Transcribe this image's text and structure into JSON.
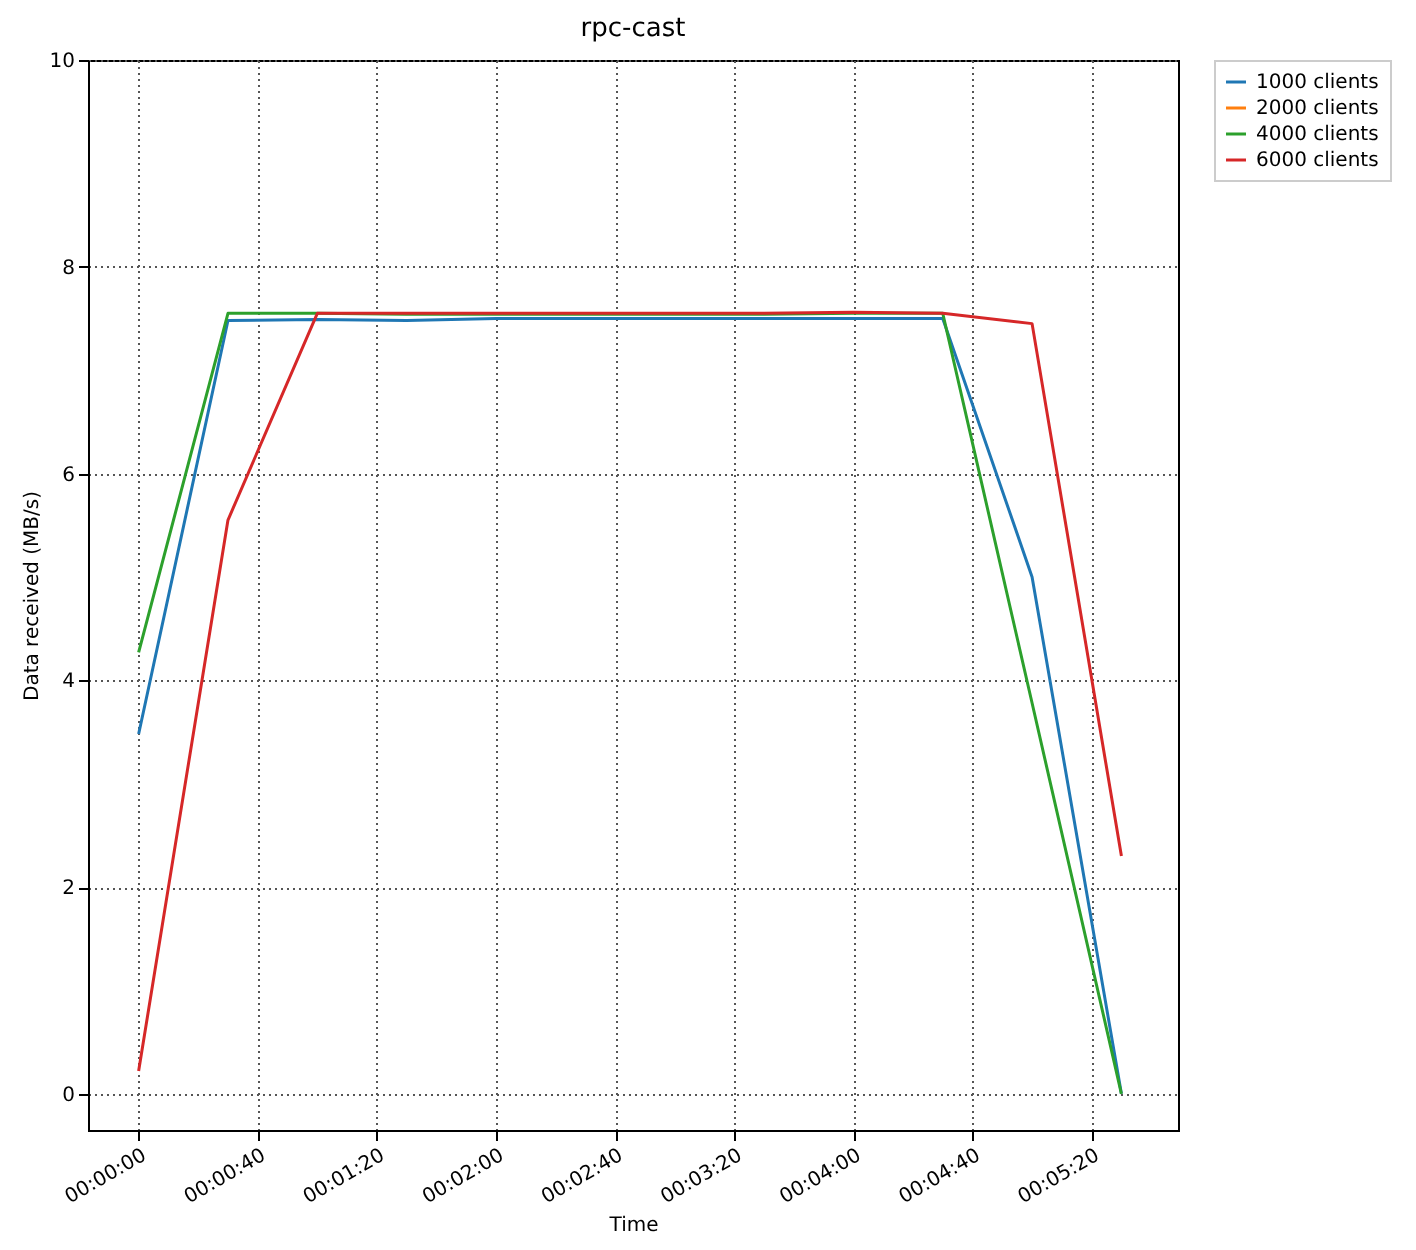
{
  "chart_data": {
    "type": "line",
    "title": "rpc-cast",
    "xlabel": "Time",
    "ylabel": "Data received (MB/s)",
    "x": [
      0,
      30,
      60,
      90,
      120,
      150,
      180,
      210,
      240,
      270,
      300,
      330
    ],
    "series": [
      {
        "name": "1000 clients",
        "color": "#1f77b4",
        "values": [
          3.48,
          7.48,
          7.49,
          7.48,
          7.5,
          7.5,
          7.5,
          7.5,
          7.5,
          7.5,
          5.0,
          0
        ]
      },
      {
        "name": "2000 clients",
        "color": "#ff7f0e",
        "values": [
          null,
          null,
          null,
          null,
          null,
          null,
          null,
          null,
          null,
          null,
          null,
          null
        ]
      },
      {
        "name": "4000 clients",
        "color": "#2ca02c",
        "values": [
          4.27,
          7.55,
          7.55,
          7.54,
          7.54,
          7.54,
          7.54,
          7.54,
          7.55,
          7.55,
          3.78,
          0
        ]
      },
      {
        "name": "6000 clients",
        "color": "#d62728",
        "values": [
          0.22,
          5.55,
          7.55,
          7.55,
          7.55,
          7.55,
          7.55,
          7.55,
          7.56,
          7.55,
          7.45,
          2.3
        ]
      }
    ],
    "xlim": [
      -17,
      349
    ],
    "xticks": [
      {
        "value": 0,
        "label": "00:00:00"
      },
      {
        "value": 40,
        "label": "00:00:40"
      },
      {
        "value": 80,
        "label": "00:01:20"
      },
      {
        "value": 120,
        "label": "00:02:00"
      },
      {
        "value": 160,
        "label": "00:02:40"
      },
      {
        "value": 200,
        "label": "00:03:20"
      },
      {
        "value": 240,
        "label": "00:04:00"
      },
      {
        "value": 280,
        "label": "00:04:40"
      },
      {
        "value": 320,
        "label": "00:05:20"
      }
    ],
    "ylim": [
      -0.35,
      10
    ],
    "yticks": [
      0,
      2,
      4,
      6,
      8,
      10
    ],
    "grid": true,
    "legend": "right",
    "marker": "none",
    "line_style": "solid"
  }
}
